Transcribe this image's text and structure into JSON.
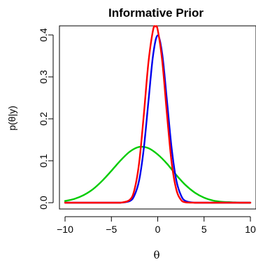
{
  "chart_data": {
    "type": "line",
    "title": "Informative Prior",
    "xlabel": "θ",
    "ylabel": "p(θ|y)",
    "xlim": [
      -10,
      10
    ],
    "ylim": [
      0,
      0.42
    ],
    "xticks": [
      -10,
      -5,
      0,
      5,
      10
    ],
    "xtick_labels": [
      "−10",
      "−5",
      "0",
      "5",
      "10"
    ],
    "yticks": [
      0.0,
      0.1,
      0.2,
      0.3,
      0.4
    ],
    "ytick_labels": [
      "0.0",
      "0.1",
      "0.2",
      "0.3",
      "0.4"
    ],
    "grid": false,
    "series": [
      {
        "color": "#00cc00",
        "x": [
          -10,
          -9,
          -8,
          -7,
          -6,
          -5,
          -4,
          -3,
          -2,
          -1,
          0,
          1,
          2,
          3,
          4,
          5,
          6,
          7,
          8,
          9,
          10
        ],
        "y": [
          0.004,
          0.009,
          0.018,
          0.032,
          0.052,
          0.076,
          0.101,
          0.122,
          0.133,
          0.13,
          0.115,
          0.093,
          0.066,
          0.042,
          0.024,
          0.012,
          0.005,
          0.002,
          0.001,
          0.0,
          0.0
        ]
      },
      {
        "color": "#0000ee",
        "x": [
          -10,
          -5,
          -4,
          -3,
          -2.5,
          -2,
          -1.5,
          -1,
          -0.5,
          0,
          0.5,
          1,
          1.5,
          2,
          2.5,
          3,
          4,
          5,
          10
        ],
        "y": [
          0.0,
          0.0,
          0.0,
          0.004,
          0.018,
          0.054,
          0.13,
          0.242,
          0.352,
          0.399,
          0.352,
          0.242,
          0.13,
          0.054,
          0.018,
          0.004,
          0.0,
          0.0,
          0.0
        ]
      },
      {
        "color": "#ff0000",
        "x": [
          -10,
          -5,
          -4,
          -3,
          -2.5,
          -2,
          -1.5,
          -1,
          -0.5,
          -0.25,
          0,
          0.5,
          1,
          1.5,
          2,
          2.5,
          3,
          4,
          5,
          10
        ],
        "y": [
          0.0,
          0.0,
          0.0,
          0.007,
          0.032,
          0.096,
          0.21,
          0.335,
          0.412,
          0.42,
          0.412,
          0.335,
          0.21,
          0.096,
          0.032,
          0.007,
          0.001,
          0.0,
          0.0,
          0.0
        ]
      }
    ]
  }
}
